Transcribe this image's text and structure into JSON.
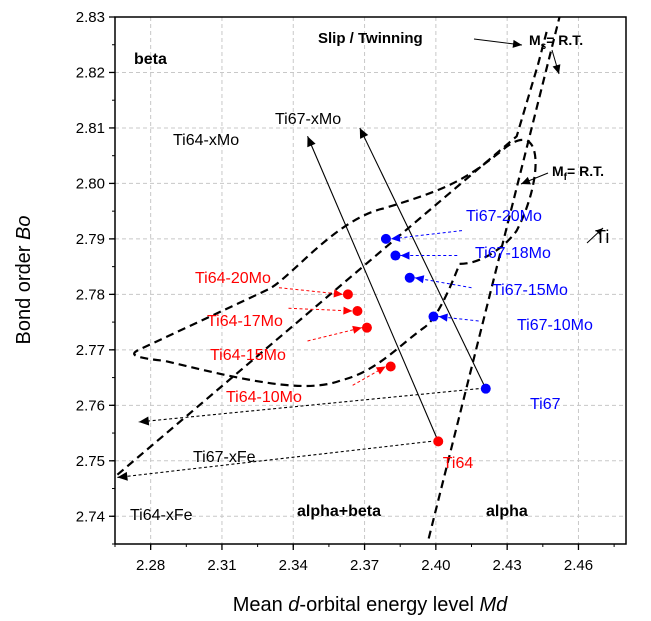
{
  "chart_data": {
    "type": "scatter",
    "xlabel": {
      "pre": "Mean ",
      "italic1": "d",
      "mid": "-orbital energy level ",
      "italic2": "Md"
    },
    "ylabel": {
      "pre": "Bond order ",
      "italic": "Bo"
    },
    "xlim": [
      2.265,
      2.48
    ],
    "ylim": [
      2.735,
      2.83
    ],
    "x_ticks": [
      "2.28",
      "2.31",
      "2.34",
      "2.37",
      "2.40",
      "2.43",
      "2.46"
    ],
    "y_ticks": [
      "2.74",
      "2.75",
      "2.76",
      "2.77",
      "2.78",
      "2.79",
      "2.80",
      "2.81",
      "2.82",
      "2.83"
    ],
    "grid": true,
    "colors": {
      "red": "#ff0000",
      "blue": "#0000ff",
      "black": "#000000"
    },
    "series": [
      {
        "color": "#ff0000",
        "points": [
          {
            "label": "Ti64",
            "x": 2.401,
            "y": 2.7535
          },
          {
            "label": "Ti64-10Mo",
            "x": 2.381,
            "y": 2.767
          },
          {
            "label": "Ti64-15Mo",
            "x": 2.371,
            "y": 2.774
          },
          {
            "label": "Ti64-17Mo",
            "x": 2.367,
            "y": 2.777
          },
          {
            "label": "Ti64-20Mo",
            "x": 2.363,
            "y": 2.78
          }
        ]
      },
      {
        "color": "#0000ff",
        "points": [
          {
            "label": "Ti67",
            "x": 2.421,
            "y": 2.763
          },
          {
            "label": "Ti67-10Mo",
            "x": 2.399,
            "y": 2.776
          },
          {
            "label": "Ti67-15Mo",
            "x": 2.389,
            "y": 2.783
          },
          {
            "label": "Ti67-18Mo",
            "x": 2.383,
            "y": 2.787
          },
          {
            "label": "Ti67-20Mo",
            "x": 2.379,
            "y": 2.79
          }
        ]
      }
    ],
    "regions": {
      "beta": "beta",
      "alpha_beta": "alpha+beta",
      "alpha": "alpha",
      "slip": "Slip / Twinning"
    },
    "boundary_labels": {
      "ms_main": "M",
      "ms_sub": "s",
      "ms_rest": "= R.T.",
      "mf_main": "M",
      "mf_sub": "f",
      "mf_rest": "= R.T."
    },
    "vectors": {
      "ti64_mo": "Ti64-xMo",
      "ti67_mo": "Ti67-xMo",
      "ti67_fe": "Ti67-xFe",
      "ti64_fe": "Ti64-xFe",
      "ti": "Ti"
    }
  }
}
